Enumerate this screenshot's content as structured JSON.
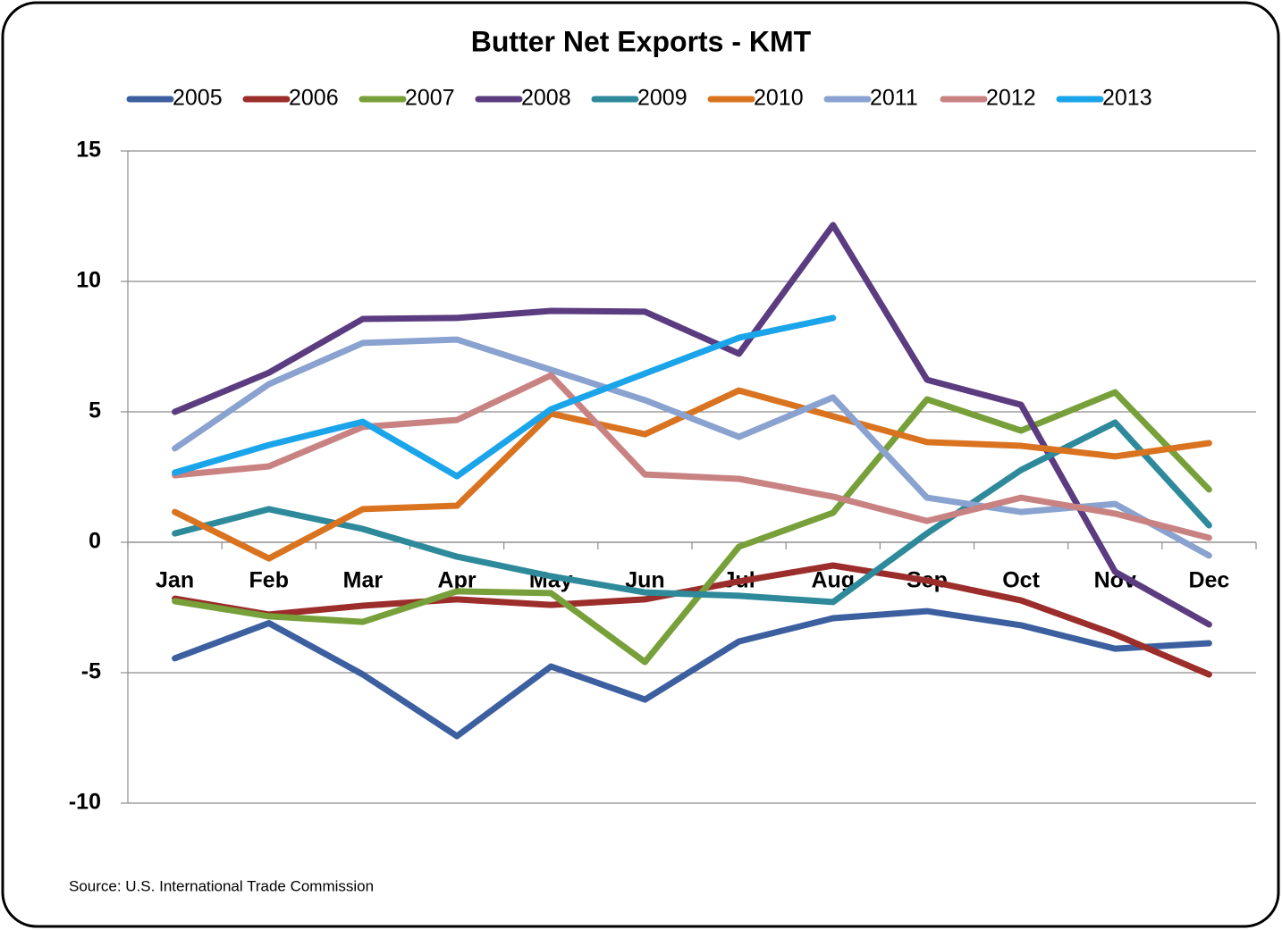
{
  "chart_data": {
    "type": "line",
    "title": "Butter Net Exports - KMT",
    "source": "Source: U.S. International Trade Commission",
    "categories": [
      "Jan",
      "Feb",
      "Mar",
      "Apr",
      "May",
      "Jun",
      "Jul",
      "Aug",
      "Sep",
      "Oct",
      "Nov",
      "Dec"
    ],
    "ylim": [
      -10,
      15
    ],
    "yticks": [
      -10,
      -5,
      0,
      5,
      10,
      15
    ],
    "grid": true,
    "legend": "top",
    "series": [
      {
        "name": "2005",
        "color": "#3c5fa0",
        "values": [
          -4.45,
          -3.1,
          -5.07,
          -7.43,
          -4.76,
          -6.03,
          -3.8,
          -2.91,
          -2.64,
          -3.18,
          -4.08,
          -3.87
        ]
      },
      {
        "name": "2006",
        "color": "#9b2d2a",
        "values": [
          -2.16,
          -2.77,
          -2.43,
          -2.19,
          -2.4,
          -2.19,
          -1.5,
          -0.89,
          -1.47,
          -2.23,
          -3.53,
          -5.07
        ]
      },
      {
        "name": "2007",
        "color": "#77a03a",
        "values": [
          -2.26,
          -2.84,
          -3.05,
          -1.88,
          -1.95,
          -4.59,
          -0.17,
          1.13,
          5.48,
          4.28,
          5.75,
          2.02
        ]
      },
      {
        "name": "2008",
        "color": "#5c3c80",
        "values": [
          5,
          6.5,
          8.56,
          8.6,
          8.87,
          8.84,
          7.23,
          12.16,
          6.23,
          5.27,
          -1.13,
          -3.15
        ]
      },
      {
        "name": "2009",
        "color": "#2e8a9a",
        "values": [
          0.34,
          1.27,
          0.51,
          -0.55,
          -1.3,
          -1.92,
          -2.05,
          -2.29,
          0.34,
          2.77,
          4.59,
          0.65
        ]
      },
      {
        "name": "2010",
        "color": "#d9731f",
        "values": [
          1.16,
          -0.62,
          1.27,
          1.4,
          4.93,
          4.14,
          5.82,
          4.83,
          3.84,
          3.7,
          3.29,
          3.8
        ]
      },
      {
        "name": "2011",
        "color": "#8aa2cf",
        "values": [
          3.6,
          6.06,
          7.64,
          7.77,
          6.61,
          5.45,
          4.04,
          5.55,
          1.71,
          1.16,
          1.47,
          -0.51
        ]
      },
      {
        "name": "2012",
        "color": "#c98282",
        "values": [
          2.57,
          2.91,
          4.42,
          4.69,
          6.4,
          2.6,
          2.43,
          1.75,
          0.82,
          1.71,
          1.1,
          0.17
        ]
      },
      {
        "name": "2013",
        "color": "#1aa5ea",
        "values": [
          2.67,
          3.73,
          4.62,
          2.53,
          5.1,
          6.47,
          7.84,
          8.6,
          null,
          null,
          null,
          null
        ]
      }
    ]
  }
}
